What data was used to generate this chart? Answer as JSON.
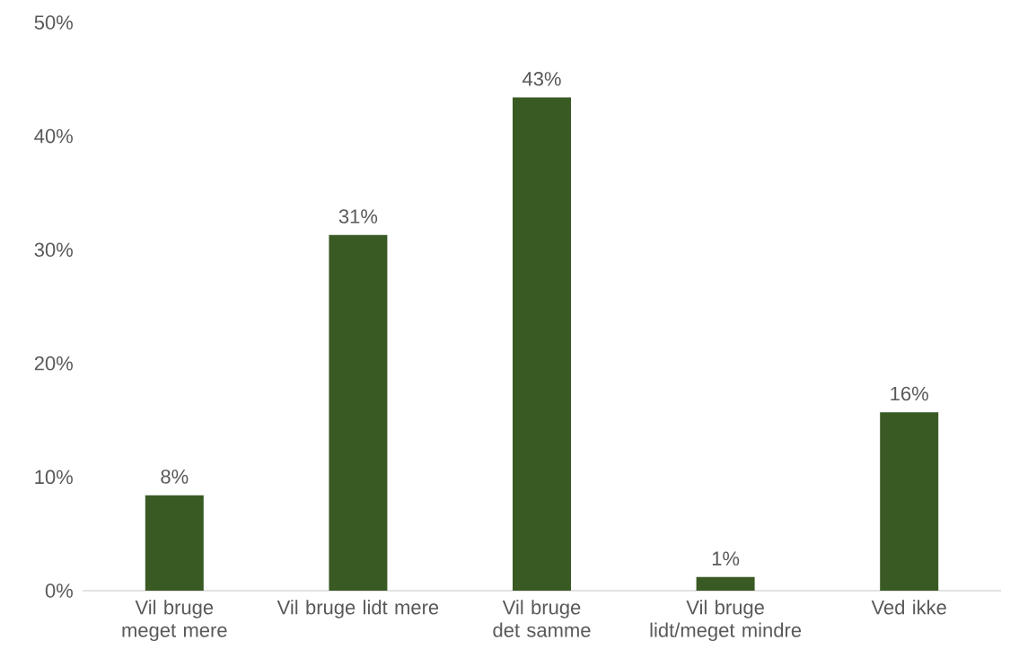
{
  "chart_data": {
    "type": "bar",
    "categories": [
      "Vil bruge meget mere",
      "Vil bruge lidt mere",
      "Vil bruge det samme",
      "Vil bruge lidt/meget mindre",
      "Ved ikke"
    ],
    "values": [
      8.4,
      31.3,
      43.4,
      1.2,
      15.7
    ],
    "value_labels": [
      "8%",
      "31%",
      "43%",
      "1%",
      "16%"
    ],
    "color": "#3a5a24",
    "ylim": [
      0,
      50
    ],
    "yticks": [
      {
        "value": 0,
        "label": "0%"
      },
      {
        "value": 10,
        "label": "10%"
      },
      {
        "value": 20,
        "label": "20%"
      },
      {
        "value": 30,
        "label": "30%"
      },
      {
        "value": 40,
        "label": "40%"
      },
      {
        "value": 50,
        "label": "50%"
      }
    ],
    "grid": false
  }
}
